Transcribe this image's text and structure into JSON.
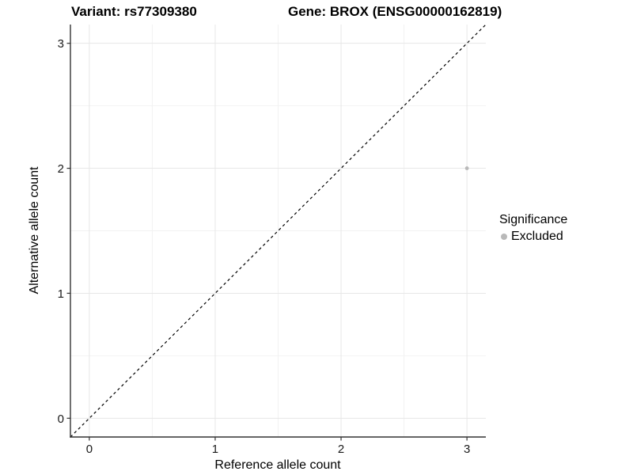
{
  "header": {
    "title_left": "Variant: rs77309380",
    "title_right": "Gene: BROX (ENSG00000162819)"
  },
  "legend": {
    "title": "Significance",
    "items": [
      {
        "label": "Excluded",
        "color": "#b9b9b9"
      }
    ]
  },
  "colors": {
    "background": "#ffffff",
    "grid_major": "#e7e7e7",
    "grid_minor": "#f2f2f2",
    "axis_line": "#333333",
    "tick_mark": "#333333",
    "text": "#000000",
    "point": "#b9b9b9",
    "reference_line": "#000000"
  },
  "chart_data": {
    "type": "scatter",
    "title": "Variant: rs77309380 | Gene: BROX (ENSG00000162819)",
    "xlabel": "Reference allele count",
    "ylabel": "Alternative allele count",
    "xlim": [
      -0.15,
      3.15
    ],
    "ylim": [
      -0.15,
      3.15
    ],
    "x_ticks": [
      0,
      1,
      2,
      3
    ],
    "y_ticks": [
      0,
      1,
      2,
      3
    ],
    "x_minor_ticks": [
      0.5,
      1.5,
      2.5
    ],
    "y_minor_ticks": [
      0.5,
      1.5,
      2.5
    ],
    "grid": true,
    "legend_title": "Significance",
    "legend_position": "right",
    "series": [
      {
        "name": "Excluded",
        "color": "#b9b9b9",
        "point_radius": 2.4,
        "points": [
          {
            "x": 3,
            "y": 2
          }
        ]
      }
    ],
    "reference_line": {
      "type": "identity",
      "equation": "y = x",
      "style": "dashed",
      "color": "#000000"
    }
  }
}
